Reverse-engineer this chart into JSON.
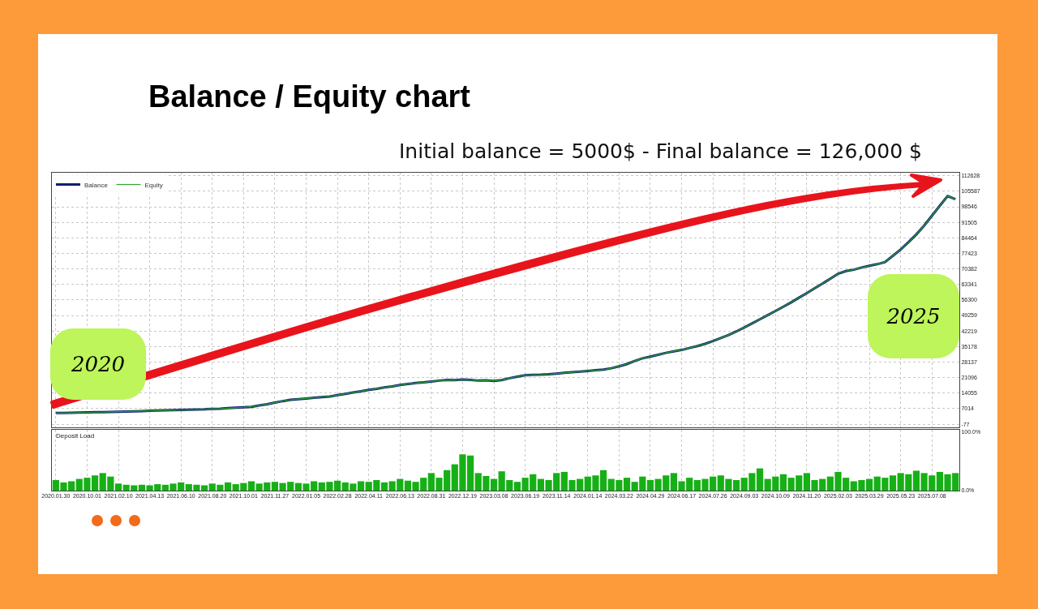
{
  "chart_data": [
    {
      "type": "line",
      "title": "Balance / Equity chart",
      "subtitle": "Initial balance = 5000$ - Final balance = 126,000 $",
      "annotations": [
        "2020",
        "2025"
      ],
      "legend": "top left",
      "grid": true,
      "tick_labels": "y",
      "categories": [
        "2020.01.30",
        null,
        null,
        null,
        "2020.10.01",
        null,
        null,
        null,
        "2021.02.10",
        null,
        null,
        null,
        "2021.04.13",
        null,
        null,
        null,
        "2021.06.10",
        null,
        null,
        null,
        "2021.08.20",
        null,
        null,
        null,
        "2021.10.01",
        null,
        null,
        null,
        "2021.11.27",
        null,
        null,
        null,
        "2022.01.05",
        null,
        null,
        null,
        "2022.02.28",
        null,
        null,
        null,
        "2022.04.11",
        null,
        null,
        null,
        "2022.06.13",
        null,
        null,
        null,
        "2022.08.31",
        null,
        null,
        null,
        "2022.12.19",
        null,
        null,
        null,
        "2023.03.08",
        null,
        null,
        null,
        "2023.06.19",
        null,
        null,
        null,
        "2023.11.14",
        null,
        null,
        null,
        "2024.01.14",
        null,
        null,
        null,
        "2024.03.22",
        null,
        null,
        null,
        "2024.04.29",
        null,
        null,
        null,
        "2024.06.17",
        null,
        null,
        null,
        "2024.07.26",
        null,
        null,
        null,
        "2024.09.03",
        null,
        null,
        null,
        "2024.10.09",
        null,
        null,
        null,
        "2024.11.20",
        null,
        null,
        null,
        "2025.02.03",
        null,
        null,
        null,
        "2025.03.29",
        null,
        null,
        null,
        "2025.05.23",
        null,
        null,
        null,
        "2025.07.08",
        null,
        null,
        null
      ],
      "ylim": [
        -1500,
        114000
      ],
      "yticks": [
        -77,
        7014,
        14055,
        21096,
        28137,
        35178,
        42219,
        49259,
        56300,
        63341,
        70382,
        77423,
        84464,
        91505,
        98546,
        105587,
        112628
      ],
      "series": [
        {
          "name": "Balance",
          "color": "#0a1e6e",
          "values": [
            5000,
            5000,
            5100,
            5200,
            5300,
            5400,
            5400,
            5500,
            5600,
            5700,
            5800,
            5900,
            6000,
            6100,
            6200,
            6300,
            6400,
            6500,
            6600,
            6700,
            6900,
            7000,
            7200,
            7400,
            7600,
            7800,
            8400,
            9000,
            9700,
            10400,
            11000,
            11300,
            11600,
            11900,
            12200,
            12500,
            13100,
            13700,
            14300,
            14900,
            15500,
            16000,
            16600,
            17100,
            17700,
            18200,
            18600,
            18900,
            19300,
            19700,
            20000,
            19900,
            20200,
            20000,
            19700,
            19800,
            19600,
            19900,
            20800,
            21500,
            22100,
            22300,
            22400,
            22600,
            22900,
            23200,
            23500,
            23800,
            24100,
            24400,
            24700,
            25300,
            26200,
            27200,
            28600,
            29800,
            30600,
            31400,
            32300,
            33000,
            33600,
            34500,
            35400,
            36400,
            37600,
            39000,
            40400,
            42000,
            43800,
            45600,
            47500,
            49400,
            51300,
            53200,
            55200,
            57300,
            59400,
            61600,
            63700,
            65900,
            68200,
            69400,
            70000,
            71000,
            71800,
            72500,
            73500,
            76300,
            79200,
            82500,
            86000,
            90000,
            94500,
            99000,
            103400,
            102000
          ]
        },
        {
          "name": "Equity",
          "color": "#2ea82e",
          "values": [
            5000,
            5000,
            5100,
            5200,
            5300,
            5400,
            5400,
            5500,
            5600,
            5700,
            5800,
            5900,
            6000,
            6100,
            6200,
            6300,
            6400,
            6500,
            6600,
            6700,
            6900,
            7000,
            7200,
            7400,
            7600,
            7800,
            8400,
            9000,
            9700,
            10400,
            11000,
            11300,
            11600,
            11900,
            12200,
            12500,
            13100,
            13700,
            14300,
            14900,
            15500,
            16000,
            16600,
            17100,
            17700,
            18200,
            18600,
            18900,
            19300,
            19700,
            20000,
            19900,
            20200,
            20000,
            19700,
            19800,
            19600,
            19900,
            20800,
            21500,
            22100,
            22300,
            22400,
            22600,
            22900,
            23200,
            23500,
            23800,
            24100,
            24400,
            24700,
            25300,
            26200,
            27200,
            28600,
            29800,
            30600,
            31400,
            32300,
            33000,
            33600,
            34500,
            35400,
            36400,
            37600,
            39000,
            40400,
            42000,
            43800,
            45600,
            47500,
            49400,
            51300,
            53200,
            55200,
            57300,
            59400,
            61600,
            63700,
            65900,
            68200,
            69400,
            70000,
            71000,
            71800,
            72500,
            73500,
            76300,
            79200,
            82500,
            86000,
            90000,
            94500,
            99000,
            103400,
            102000
          ]
        }
      ]
    },
    {
      "type": "bar",
      "title": "Deposit Load",
      "grid": "x",
      "color": "#16b016",
      "categories": [
        "2020.01.30",
        null,
        null,
        null,
        "2020.10.01",
        null,
        null,
        null,
        "2021.02.10",
        null,
        null,
        null,
        "2021.04.13",
        null,
        null,
        null,
        "2021.06.10",
        null,
        null,
        null,
        "2021.08.20",
        null,
        null,
        null,
        "2021.10.01",
        null,
        null,
        null,
        "2021.11.27",
        null,
        null,
        null,
        "2022.01.05",
        null,
        null,
        null,
        "2022.02.28",
        null,
        null,
        null,
        "2022.04.11",
        null,
        null,
        null,
        "2022.06.13",
        null,
        null,
        null,
        "2022.08.31",
        null,
        null,
        null,
        "2022.12.19",
        null,
        null,
        null,
        "2023.03.08",
        null,
        null,
        null,
        "2023.06.19",
        null,
        null,
        null,
        "2023.11.14",
        null,
        null,
        null,
        "2024.01.14",
        null,
        null,
        null,
        "2024.03.22",
        null,
        null,
        null,
        "2024.04.29",
        null,
        null,
        null,
        "2024.06.17",
        null,
        null,
        null,
        "2024.07.26",
        null,
        null,
        null,
        "2024.09.03",
        null,
        null,
        null,
        "2024.10.09",
        null,
        null,
        null,
        "2024.11.20",
        null,
        null,
        null,
        "2025.02.03",
        null,
        null,
        null,
        "2025.03.29",
        null,
        null,
        null,
        "2025.05.23",
        null,
        null,
        null,
        "2025.07.08",
        null,
        null,
        null
      ],
      "ylim": [
        0,
        104
      ],
      "yticks": [
        {
          "value": 0,
          "label": "0.0%"
        },
        {
          "value": 100,
          "label": "100.0%"
        }
      ],
      "values": [
        18,
        14,
        16,
        20,
        22,
        26,
        30,
        24,
        12,
        10,
        9,
        10,
        9,
        11,
        10,
        12,
        14,
        11,
        10,
        9,
        12,
        10,
        14,
        11,
        13,
        16,
        12,
        14,
        15,
        13,
        15,
        13,
        12,
        16,
        14,
        15,
        17,
        14,
        12,
        16,
        15,
        18,
        14,
        16,
        20,
        17,
        15,
        22,
        30,
        22,
        35,
        45,
        62,
        60,
        30,
        25,
        20,
        33,
        18,
        15,
        22,
        28,
        20,
        18,
        30,
        32,
        18,
        20,
        24,
        26,
        35,
        20,
        18,
        22,
        15,
        24,
        18,
        20,
        26,
        30,
        16,
        22,
        18,
        20,
        24,
        26,
        20,
        18,
        22,
        30,
        38,
        20,
        24,
        28,
        22,
        26,
        30,
        18,
        20,
        24,
        32,
        22,
        16,
        18,
        20,
        24,
        22,
        26,
        30,
        28,
        34,
        30,
        26,
        32,
        28,
        30
      ]
    }
  ]
}
